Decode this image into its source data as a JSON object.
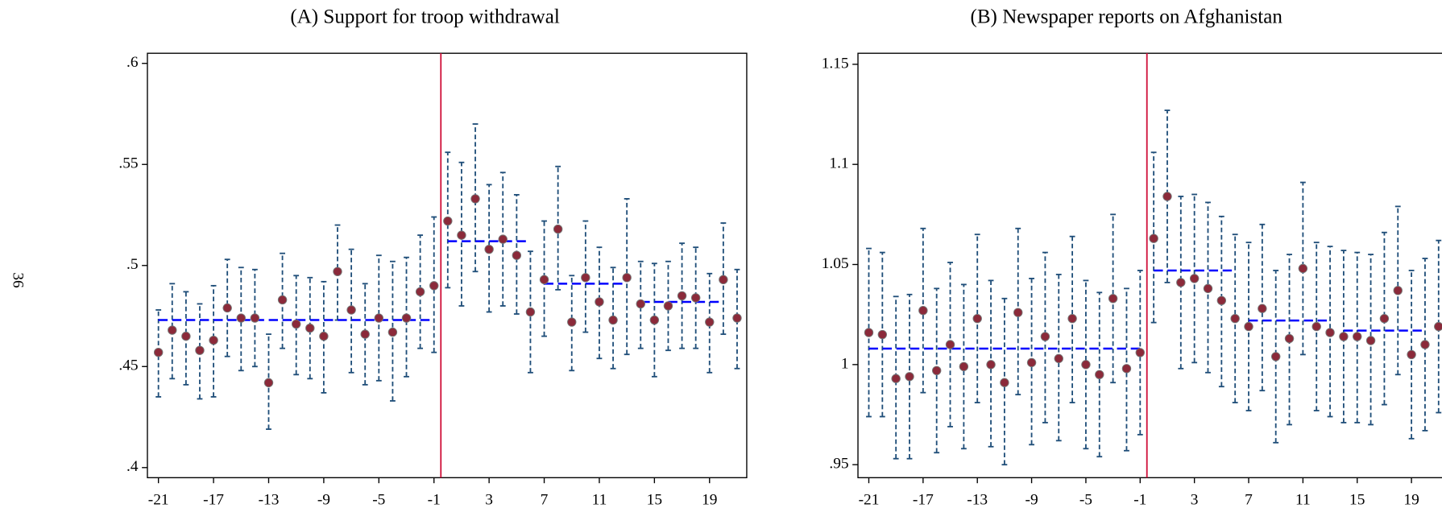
{
  "page_number": "36",
  "chart_data": [
    {
      "type": "errorbar",
      "title": "(A) Support for troop withdrawal",
      "x": [
        -21,
        -20,
        -19,
        -18,
        -17,
        -16,
        -15,
        -14,
        -13,
        -12,
        -11,
        -10,
        -9,
        -8,
        -7,
        -6,
        -5,
        -4,
        -3,
        -2,
        -1,
        0,
        1,
        2,
        3,
        4,
        5,
        6,
        7,
        8,
        9,
        10,
        11,
        12,
        13,
        14,
        15,
        16,
        17,
        18,
        19,
        20,
        21
      ],
      "values": [
        0.457,
        0.468,
        0.465,
        0.458,
        0.463,
        0.479,
        0.474,
        0.474,
        0.442,
        0.483,
        0.471,
        0.469,
        0.465,
        0.497,
        0.478,
        0.466,
        0.474,
        0.467,
        0.474,
        0.487,
        0.49,
        0.522,
        0.515,
        0.533,
        0.508,
        0.513,
        0.505,
        0.477,
        0.493,
        0.518,
        0.472,
        0.494,
        0.482,
        0.473,
        0.494,
        0.481,
        0.473,
        0.48,
        0.485,
        0.484,
        0.472,
        0.493,
        0.474
      ],
      "ci_low": [
        0.435,
        0.444,
        0.441,
        0.434,
        0.435,
        0.455,
        0.448,
        0.45,
        0.419,
        0.459,
        0.446,
        0.444,
        0.437,
        0.473,
        0.447,
        0.441,
        0.443,
        0.433,
        0.445,
        0.459,
        0.457,
        0.489,
        0.48,
        0.497,
        0.477,
        0.48,
        0.476,
        0.447,
        0.465,
        0.488,
        0.448,
        0.467,
        0.454,
        0.449,
        0.456,
        0.459,
        0.445,
        0.458,
        0.459,
        0.459,
        0.447,
        0.466,
        0.449
      ],
      "ci_high": [
        0.478,
        0.491,
        0.487,
        0.481,
        0.49,
        0.503,
        0.499,
        0.498,
        0.466,
        0.506,
        0.495,
        0.494,
        0.492,
        0.52,
        0.508,
        0.491,
        0.505,
        0.502,
        0.504,
        0.515,
        0.524,
        0.556,
        0.551,
        0.57,
        0.54,
        0.546,
        0.535,
        0.507,
        0.522,
        0.549,
        0.495,
        0.522,
        0.509,
        0.499,
        0.533,
        0.502,
        0.501,
        0.502,
        0.511,
        0.509,
        0.496,
        0.521,
        0.498
      ],
      "means": [
        {
          "from": -21,
          "to": -1,
          "value": 0.473
        },
        {
          "from": 0,
          "to": 6,
          "value": 0.512
        },
        {
          "from": 7,
          "to": 13,
          "value": 0.491
        },
        {
          "from": 14,
          "to": 20,
          "value": 0.482
        }
      ],
      "vline": -0.5,
      "xlim": [
        -21.8,
        21.7
      ],
      "ylim": [
        0.395,
        0.605
      ],
      "xticks": [
        -21,
        -17,
        -13,
        -9,
        -5,
        -1,
        3,
        7,
        11,
        15,
        19
      ],
      "yticks": [
        {
          "value": 0.4,
          "label": ".4"
        },
        {
          "value": 0.45,
          "label": ".45"
        },
        {
          "value": 0.5,
          "label": ".5"
        },
        {
          "value": 0.55,
          "label": ".55"
        },
        {
          "value": 0.6,
          "label": ".6"
        }
      ],
      "point_color": "#8b2a3a",
      "errorbar_color": "#1f4e79",
      "mean_color": "#0000ff",
      "vline_color": "#d0103a"
    },
    {
      "type": "errorbar",
      "title": "(B) Newspaper reports on Afghanistan",
      "x": [
        -21,
        -20,
        -19,
        -18,
        -17,
        -16,
        -15,
        -14,
        -13,
        -12,
        -11,
        -10,
        -9,
        -8,
        -7,
        -6,
        -5,
        -4,
        -3,
        -2,
        -1,
        0,
        1,
        2,
        3,
        4,
        5,
        6,
        7,
        8,
        9,
        10,
        11,
        12,
        13,
        14,
        15,
        16,
        17,
        18,
        19,
        20,
        21
      ],
      "values": [
        1.016,
        1.015,
        0.993,
        0.994,
        1.027,
        0.997,
        1.01,
        0.999,
        1.023,
        1.0,
        0.991,
        1.026,
        1.001,
        1.014,
        1.003,
        1.023,
        1.0,
        0.995,
        1.033,
        0.998,
        1.006,
        1.063,
        1.084,
        1.041,
        1.043,
        1.038,
        1.032,
        1.023,
        1.019,
        1.028,
        1.004,
        1.013,
        1.048,
        1.019,
        1.016,
        1.014,
        1.014,
        1.012,
        1.023,
        1.037,
        1.005,
        1.01,
        1.019
      ],
      "ci_low": [
        0.974,
        0.974,
        0.953,
        0.953,
        0.986,
        0.956,
        0.969,
        0.958,
        0.981,
        0.959,
        0.95,
        0.985,
        0.96,
        0.971,
        0.962,
        0.981,
        0.958,
        0.954,
        0.991,
        0.957,
        0.965,
        1.021,
        1.041,
        0.998,
        1.001,
        0.996,
        0.989,
        0.981,
        0.977,
        0.987,
        0.961,
        0.97,
        1.005,
        0.977,
        0.974,
        0.971,
        0.971,
        0.97,
        0.98,
        0.995,
        0.963,
        0.967,
        0.976
      ],
      "ci_high": [
        1.058,
        1.056,
        1.034,
        1.035,
        1.068,
        1.038,
        1.051,
        1.04,
        1.065,
        1.042,
        1.033,
        1.068,
        1.043,
        1.056,
        1.045,
        1.064,
        1.042,
        1.036,
        1.075,
        1.038,
        1.047,
        1.106,
        1.127,
        1.084,
        1.085,
        1.081,
        1.074,
        1.065,
        1.061,
        1.07,
        1.047,
        1.055,
        1.091,
        1.061,
        1.059,
        1.057,
        1.056,
        1.055,
        1.066,
        1.079,
        1.047,
        1.053,
        1.062
      ],
      "means": [
        {
          "from": -21,
          "to": -1,
          "value": 1.008
        },
        {
          "from": 0,
          "to": 6,
          "value": 1.047
        },
        {
          "from": 7,
          "to": 13,
          "value": 1.022
        },
        {
          "from": 14,
          "to": 20,
          "value": 1.017
        }
      ],
      "vline": -0.5,
      "xlim": [
        -21.8,
        21.7
      ],
      "ylim": [
        0.9435,
        1.1555
      ],
      "xticks": [
        -21,
        -17,
        -13,
        -9,
        -5,
        -1,
        3,
        7,
        11,
        15,
        19
      ],
      "yticks": [
        {
          "value": 0.95,
          "label": ".95"
        },
        {
          "value": 1,
          "label": "1"
        },
        {
          "value": 1.05,
          "label": "1.05"
        },
        {
          "value": 1.1,
          "label": "1.1"
        },
        {
          "value": 1.15,
          "label": "1.15"
        }
      ],
      "point_color": "#8b2a3a",
      "errorbar_color": "#1f4e79",
      "mean_color": "#0000ff",
      "vline_color": "#d0103a"
    }
  ]
}
